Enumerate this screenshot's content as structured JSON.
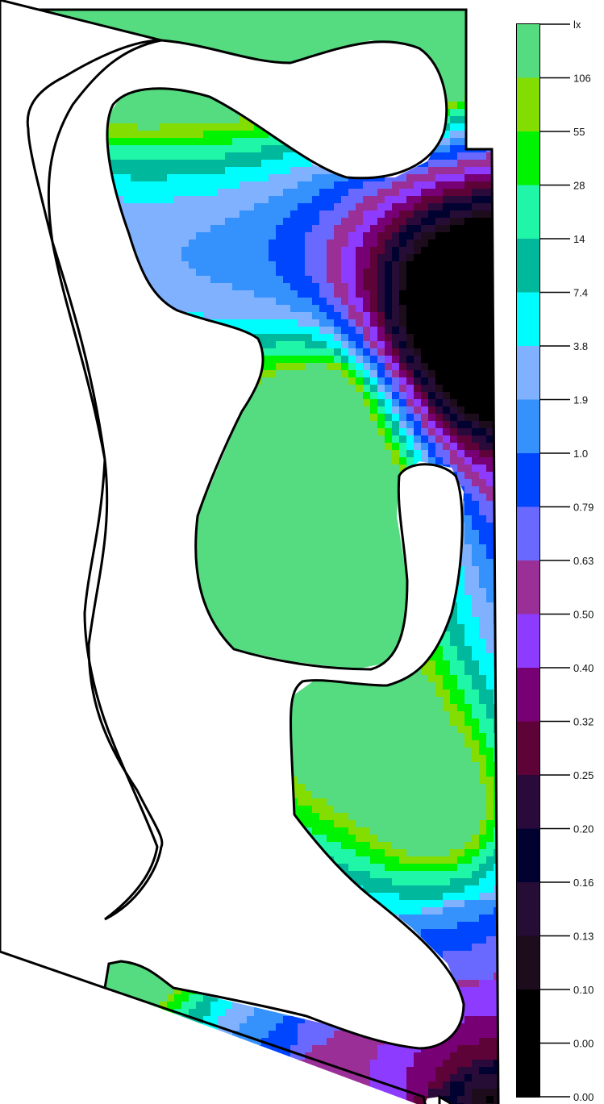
{
  "chart_data": {
    "type": "heatmap",
    "title": "",
    "legend_title": "lx",
    "legend_placement": "right",
    "grid": false,
    "levels": [
      {
        "label": "0.00",
        "color": "#000000"
      },
      {
        "label": "0.10",
        "color": "#000000"
      },
      {
        "label": "0.13",
        "color": "#1c0c1c"
      },
      {
        "label": "0.16",
        "color": "#250d35"
      },
      {
        "label": "0.20",
        "color": "#020230"
      },
      {
        "label": "0.25",
        "color": "#2a0a3a"
      },
      {
        "label": "0.32",
        "color": "#5e0338"
      },
      {
        "label": "0.40",
        "color": "#780075"
      },
      {
        "label": "0.50",
        "color": "#8d3cff"
      },
      {
        "label": "0.63",
        "color": "#9b2f98"
      },
      {
        "label": "0.79",
        "color": "#6a69ff"
      },
      {
        "label": "1.0",
        "color": "#0046ff"
      },
      {
        "label": "1.9",
        "color": "#3592fc"
      },
      {
        "label": "3.8",
        "color": "#7fb1ff"
      },
      {
        "label": "7.4",
        "color": "#00fdfe"
      },
      {
        "label": "14",
        "color": "#00b89b"
      },
      {
        "label": "28",
        "color": "#20f6a8"
      },
      {
        "label": "55",
        "color": "#00f300"
      },
      {
        "label": "106",
        "color": "#84dd00"
      },
      {
        "label": "",
        "color": "#55db80"
      }
    ]
  }
}
